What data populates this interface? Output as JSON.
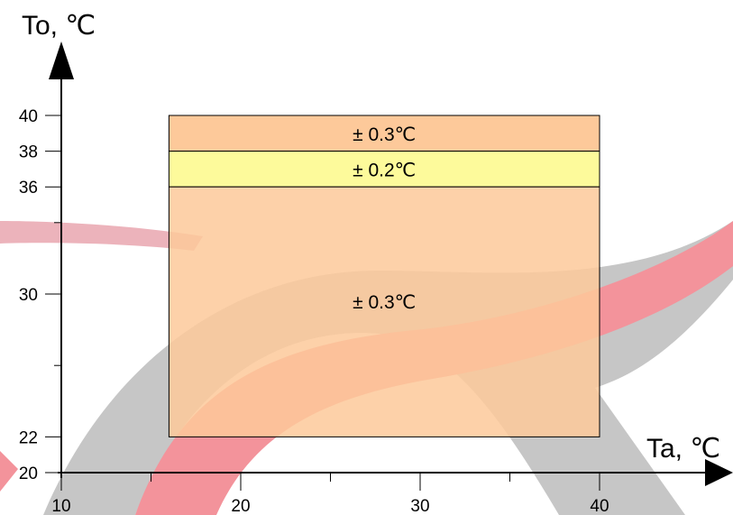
{
  "chart_data": {
    "type": "area",
    "x_axis": {
      "label": "Ta, ℃",
      "range": [
        10,
        41
      ],
      "ticks": [
        10,
        20,
        30,
        40
      ],
      "minor_ticks": [
        15,
        25,
        35
      ]
    },
    "y_axis": {
      "label": "To, ℃",
      "range": [
        20,
        40
      ],
      "ticks": [
        20,
        22,
        30,
        36,
        38,
        40
      ],
      "minor_ticks": [
        26,
        34
      ]
    },
    "bands": [
      {
        "label": "± 0.3℃",
        "ta_range": [
          16,
          40
        ],
        "to_range": [
          38,
          40
        ],
        "color": "#fdc99a"
      },
      {
        "label": "± 0.2℃",
        "ta_range": [
          16,
          40
        ],
        "to_range": [
          36,
          38
        ],
        "color": "#fdfa9b"
      },
      {
        "label": "± 0.3℃",
        "ta_range": [
          16,
          40
        ],
        "to_range": [
          22,
          36
        ],
        "color": "#fdc99a"
      }
    ]
  },
  "watermark": {
    "colors": [
      "#b3b3b3",
      "#e69aa5",
      "#ef6f7a"
    ]
  }
}
